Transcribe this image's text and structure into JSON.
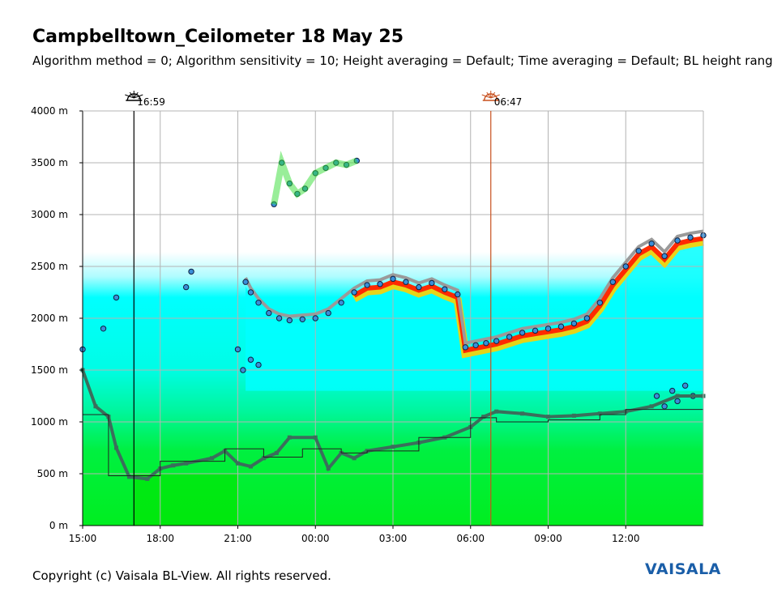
{
  "header": {
    "title": "Campbelltown_Ceilometer 18 May 25",
    "subtitle": "Algorithm method = 0; Algorithm sensitivity = 10; Height averaging = Default; Time averaging = Default; BL height rang"
  },
  "footer": {
    "copyright": "Copyright (c) Vaisala BL-View. All rights reserved.",
    "logo_text": "VAISALA"
  },
  "colors": {
    "grid": "#b4b4b4",
    "sunset_line": "#000000",
    "sunrise_line": "#c8501e",
    "backscatter_low": "#00ee20",
    "backscatter_mid": "#00ffee",
    "backscatter_high": "#ff2a00",
    "layer_marker": "#3a8fd8",
    "bl_height_marker": "#3b6e5c"
  },
  "chart_data": {
    "type": "heatmap",
    "title": "Campbelltown_Ceilometer 18 May 25",
    "ylabel": "",
    "xlabel": "",
    "ylim": [
      0,
      4000
    ],
    "xlim_hours": [
      15,
      39
    ],
    "y_ticks": [
      {
        "value": 0,
        "label": "0 m"
      },
      {
        "value": 500,
        "label": "500 m"
      },
      {
        "value": 1000,
        "label": "1000 m"
      },
      {
        "value": 1500,
        "label": "1500 m"
      },
      {
        "value": 2000,
        "label": "2000 m"
      },
      {
        "value": 2500,
        "label": "2500 m"
      },
      {
        "value": 3000,
        "label": "3000 m"
      },
      {
        "value": 3500,
        "label": "3500 m"
      },
      {
        "value": 4000,
        "label": "4000 m"
      }
    ],
    "x_ticks": [
      {
        "value": 15,
        "label": "15:00"
      },
      {
        "value": 18,
        "label": "18:00"
      },
      {
        "value": 21,
        "label": "21:00"
      },
      {
        "value": 24,
        "label": "00:00"
      },
      {
        "value": 27,
        "label": "03:00"
      },
      {
        "value": 30,
        "label": "06:00"
      },
      {
        "value": 33,
        "label": "09:00"
      },
      {
        "value": 36,
        "label": "12:00"
      }
    ],
    "grid": true,
    "sun_events": [
      {
        "type": "sunset",
        "hour": 16.983,
        "label": "16:59"
      },
      {
        "type": "sunrise",
        "hour": 30.783,
        "label": "06:47"
      }
    ],
    "upper_layer": [
      [
        21.3,
        2350
      ],
      [
        21.5,
        2250
      ],
      [
        21.8,
        2150
      ],
      [
        22.2,
        2050
      ],
      [
        22.6,
        2000
      ],
      [
        23.0,
        1980
      ],
      [
        23.5,
        1990
      ],
      [
        24.0,
        2000
      ],
      [
        24.5,
        2050
      ],
      [
        25.0,
        2150
      ],
      [
        25.5,
        2250
      ],
      [
        26.0,
        2320
      ],
      [
        26.5,
        2330
      ],
      [
        27.0,
        2380
      ],
      [
        27.5,
        2350
      ],
      [
        28.0,
        2300
      ],
      [
        28.5,
        2340
      ],
      [
        29.0,
        2280
      ],
      [
        29.5,
        2230
      ],
      [
        29.8,
        1720
      ],
      [
        30.2,
        1740
      ],
      [
        30.6,
        1760
      ],
      [
        31.0,
        1780
      ],
      [
        31.5,
        1820
      ],
      [
        32.0,
        1860
      ],
      [
        32.5,
        1880
      ],
      [
        33.0,
        1900
      ],
      [
        33.5,
        1920
      ],
      [
        34.0,
        1950
      ],
      [
        34.5,
        2000
      ],
      [
        35.0,
        2150
      ],
      [
        35.5,
        2350
      ],
      [
        36.0,
        2500
      ],
      [
        36.5,
        2650
      ],
      [
        37.0,
        2720
      ],
      [
        37.5,
        2600
      ],
      [
        38.0,
        2750
      ],
      [
        38.5,
        2780
      ],
      [
        39.0,
        2800
      ]
    ],
    "upper_cloud": [
      [
        22.4,
        3100
      ],
      [
        22.7,
        3500
      ],
      [
        23.0,
        3300
      ],
      [
        23.3,
        3200
      ],
      [
        23.6,
        3250
      ],
      [
        24.0,
        3400
      ],
      [
        24.4,
        3450
      ],
      [
        24.8,
        3500
      ],
      [
        25.2,
        3480
      ],
      [
        25.6,
        3520
      ]
    ],
    "evening_cloud": [
      [
        15.0,
        1700
      ],
      [
        15.8,
        1900
      ],
      [
        16.3,
        2200
      ],
      [
        19.0,
        2300
      ],
      [
        19.2,
        2450
      ],
      [
        21.0,
        1700
      ],
      [
        21.2,
        1500
      ],
      [
        21.5,
        1600
      ],
      [
        21.8,
        1550
      ]
    ],
    "mid_cloud_afternoon": [
      [
        37.2,
        1250
      ],
      [
        37.5,
        1150
      ],
      [
        37.8,
        1300
      ],
      [
        38.0,
        1200
      ],
      [
        38.3,
        1350
      ],
      [
        38.6,
        1250
      ]
    ],
    "bl_height": [
      [
        15.0,
        1500
      ],
      [
        15.5,
        1150
      ],
      [
        16.0,
        1050
      ],
      [
        16.3,
        750
      ],
      [
        16.8,
        470
      ],
      [
        17.5,
        450
      ],
      [
        18.0,
        550
      ],
      [
        18.5,
        580
      ],
      [
        19.0,
        600
      ],
      [
        20.0,
        650
      ],
      [
        20.5,
        720
      ],
      [
        21.0,
        600
      ],
      [
        21.5,
        570
      ],
      [
        22.0,
        650
      ],
      [
        22.5,
        700
      ],
      [
        23.0,
        850
      ],
      [
        24.0,
        850
      ],
      [
        24.5,
        550
      ],
      [
        25.0,
        700
      ],
      [
        25.5,
        650
      ],
      [
        26.0,
        720
      ],
      [
        27.0,
        760
      ],
      [
        28.0,
        800
      ],
      [
        29.0,
        850
      ],
      [
        30.0,
        950
      ],
      [
        30.5,
        1050
      ],
      [
        31.0,
        1100
      ],
      [
        32.0,
        1080
      ],
      [
        33.0,
        1050
      ],
      [
        34.0,
        1060
      ],
      [
        35.0,
        1080
      ],
      [
        36.0,
        1100
      ],
      [
        37.0,
        1150
      ],
      [
        38.0,
        1250
      ],
      [
        39.0,
        1250
      ]
    ],
    "bl_step": [
      [
        15.0,
        1070
      ],
      [
        16.0,
        1070
      ],
      [
        16.0,
        480
      ],
      [
        18.0,
        480
      ],
      [
        18.0,
        620
      ],
      [
        20.5,
        620
      ],
      [
        20.5,
        740
      ],
      [
        22.0,
        740
      ],
      [
        22.0,
        660
      ],
      [
        23.5,
        660
      ],
      [
        23.5,
        740
      ],
      [
        25.0,
        740
      ],
      [
        25.0,
        700
      ],
      [
        26.0,
        700
      ],
      [
        26.0,
        720
      ],
      [
        28.0,
        720
      ],
      [
        28.0,
        850
      ],
      [
        30.0,
        850
      ],
      [
        30.0,
        1040
      ],
      [
        31.0,
        1040
      ],
      [
        31.0,
        1000
      ],
      [
        33.0,
        1000
      ],
      [
        33.0,
        1020
      ],
      [
        35.0,
        1020
      ],
      [
        35.0,
        1070
      ],
      [
        36.0,
        1070
      ],
      [
        36.0,
        1120
      ],
      [
        39.0,
        1120
      ]
    ]
  }
}
